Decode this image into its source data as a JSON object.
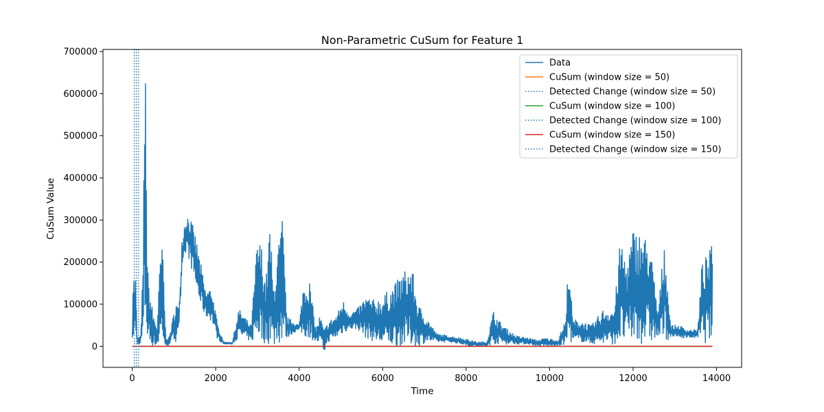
{
  "chart_data": {
    "type": "line",
    "title": "Non-Parametric CuSum for Feature 1",
    "xlabel": "Time",
    "ylabel": "CuSum Value",
    "xlim": [
      -700,
      14600
    ],
    "ylim": [
      -50000,
      705000
    ],
    "xticks": [
      0,
      2000,
      4000,
      6000,
      8000,
      10000,
      12000,
      14000
    ],
    "yticks": [
      0,
      100000,
      200000,
      300000,
      400000,
      500000,
      600000,
      700000
    ],
    "grid": false,
    "legend_position": "top-right",
    "colors": {
      "data": "#1f77b4",
      "cusum_50": "#ff7f0e",
      "cusum_100": "#2ca02c",
      "cusum_150": "#d62728",
      "detected": "#1f77b4"
    },
    "legend": [
      {
        "label": "Data",
        "style": "solid",
        "color": "#1f77b4"
      },
      {
        "label": "CuSum (window size = 50)",
        "style": "solid",
        "color": "#ff7f0e"
      },
      {
        "label": "Detected Change (window size = 50)",
        "style": "dotted",
        "color": "#1f77b4"
      },
      {
        "label": "CuSum (window size = 100)",
        "style": "solid",
        "color": "#2ca02c"
      },
      {
        "label": "Detected Change (window size = 100)",
        "style": "dotted",
        "color": "#1f77b4"
      },
      {
        "label": "CuSum (window size = 150)",
        "style": "solid",
        "color": "#d62728"
      },
      {
        "label": "Detected Change (window size = 150)",
        "style": "dotted",
        "color": "#1f77b4"
      }
    ],
    "detected_changes": [
      50,
      100,
      150
    ],
    "cusum_series": [
      {
        "name": "CuSum (window size = 50)",
        "x": [
          0,
          13900
        ],
        "y": [
          0,
          0
        ],
        "color": "#ff7f0e"
      },
      {
        "name": "CuSum (window size = 100)",
        "x": [
          0,
          13900
        ],
        "y": [
          0,
          0
        ],
        "color": "#2ca02c"
      },
      {
        "name": "CuSum (window size = 150)",
        "x": [
          0,
          13900
        ],
        "y": [
          0,
          0
        ],
        "color": "#d62728"
      }
    ],
    "data_envelope": [
      {
        "x": 0,
        "lo": 15000,
        "hi": 25000
      },
      {
        "x": 20,
        "lo": 15000,
        "hi": 170000
      },
      {
        "x": 80,
        "lo": 15000,
        "hi": 170000
      },
      {
        "x": 120,
        "lo": 5000,
        "hi": 20000
      },
      {
        "x": 200,
        "lo": 5000,
        "hi": 25000
      },
      {
        "x": 260,
        "lo": 5000,
        "hi": 200000
      },
      {
        "x": 300,
        "lo": 10000,
        "hi": 660000
      },
      {
        "x": 330,
        "lo": 15000,
        "hi": 670000
      },
      {
        "x": 360,
        "lo": 10000,
        "hi": 200000
      },
      {
        "x": 400,
        "lo": 5000,
        "hi": 150000
      },
      {
        "x": 500,
        "lo": 0,
        "hi": 80000
      },
      {
        "x": 600,
        "lo": 0,
        "hi": 50000
      },
      {
        "x": 680,
        "lo": 5000,
        "hi": 240000
      },
      {
        "x": 740,
        "lo": 5000,
        "hi": 230000
      },
      {
        "x": 800,
        "lo": -10000,
        "hi": 30000
      },
      {
        "x": 880,
        "lo": 5000,
        "hi": 20000
      },
      {
        "x": 960,
        "lo": 10000,
        "hi": 60000
      },
      {
        "x": 1040,
        "lo": 10000,
        "hi": 110000
      },
      {
        "x": 1120,
        "lo": 50000,
        "hi": 90000
      },
      {
        "x": 1200,
        "lo": 150000,
        "hi": 285000
      },
      {
        "x": 1300,
        "lo": 230000,
        "hi": 315000
      },
      {
        "x": 1380,
        "lo": 200000,
        "hi": 310000
      },
      {
        "x": 1500,
        "lo": 150000,
        "hi": 270000
      },
      {
        "x": 1620,
        "lo": 100000,
        "hi": 210000
      },
      {
        "x": 1760,
        "lo": 70000,
        "hi": 130000
      },
      {
        "x": 1900,
        "lo": 60000,
        "hi": 140000
      },
      {
        "x": 2050,
        "lo": 15000,
        "hi": 50000
      },
      {
        "x": 2200,
        "lo": 5000,
        "hi": 10000
      },
      {
        "x": 2400,
        "lo": 5000,
        "hi": 10000
      },
      {
        "x": 2550,
        "lo": 20000,
        "hi": 90000
      },
      {
        "x": 2700,
        "lo": 20000,
        "hi": 70000
      },
      {
        "x": 2850,
        "lo": 10000,
        "hi": 50000
      },
      {
        "x": 3000,
        "lo": 20000,
        "hi": 260000
      },
      {
        "x": 3100,
        "lo": 10000,
        "hi": 240000
      },
      {
        "x": 3200,
        "lo": 5000,
        "hi": 150000
      },
      {
        "x": 3300,
        "lo": 5000,
        "hi": 300000
      },
      {
        "x": 3380,
        "lo": 0,
        "hi": 140000
      },
      {
        "x": 3460,
        "lo": 0,
        "hi": 210000
      },
      {
        "x": 3600,
        "lo": 10000,
        "hi": 310000
      },
      {
        "x": 3700,
        "lo": 20000,
        "hi": 70000
      },
      {
        "x": 3850,
        "lo": 30000,
        "hi": 60000
      },
      {
        "x": 4000,
        "lo": 40000,
        "hi": 50000
      },
      {
        "x": 4100,
        "lo": 20000,
        "hi": 150000
      },
      {
        "x": 4250,
        "lo": 20000,
        "hi": 155000
      },
      {
        "x": 4400,
        "lo": 10000,
        "hi": 40000
      },
      {
        "x": 4500,
        "lo": 5000,
        "hi": 75000
      },
      {
        "x": 4600,
        "lo": -15000,
        "hi": 40000
      },
      {
        "x": 4700,
        "lo": 10000,
        "hi": 60000
      },
      {
        "x": 4900,
        "lo": 20000,
        "hi": 75000
      },
      {
        "x": 5050,
        "lo": 30000,
        "hi": 110000
      },
      {
        "x": 5200,
        "lo": 40000,
        "hi": 80000
      },
      {
        "x": 5400,
        "lo": 40000,
        "hi": 90000
      },
      {
        "x": 5600,
        "lo": 20000,
        "hi": 120000
      },
      {
        "x": 5800,
        "lo": 10000,
        "hi": 110000
      },
      {
        "x": 6000,
        "lo": 0,
        "hi": 120000
      },
      {
        "x": 6300,
        "lo": 0,
        "hi": 150000
      },
      {
        "x": 6500,
        "lo": 0,
        "hi": 180000
      },
      {
        "x": 6700,
        "lo": 0,
        "hi": 190000
      },
      {
        "x": 6850,
        "lo": 0,
        "hi": 100000
      },
      {
        "x": 7050,
        "lo": 10000,
        "hi": 70000
      },
      {
        "x": 7300,
        "lo": 10000,
        "hi": 30000
      },
      {
        "x": 7600,
        "lo": 10000,
        "hi": 25000
      },
      {
        "x": 7900,
        "lo": 5000,
        "hi": 20000
      },
      {
        "x": 8100,
        "lo": 0,
        "hi": 15000
      },
      {
        "x": 8300,
        "lo": 0,
        "hi": 10000
      },
      {
        "x": 8500,
        "lo": 0,
        "hi": 12000
      },
      {
        "x": 8650,
        "lo": 5000,
        "hi": 85000
      },
      {
        "x": 8800,
        "lo": 5000,
        "hi": 60000
      },
      {
        "x": 9000,
        "lo": 5000,
        "hi": 40000
      },
      {
        "x": 9200,
        "lo": 5000,
        "hi": 25000
      },
      {
        "x": 9500,
        "lo": 5000,
        "hi": 20000
      },
      {
        "x": 9700,
        "lo": 0,
        "hi": 15000
      },
      {
        "x": 9900,
        "lo": 0,
        "hi": 20000
      },
      {
        "x": 10200,
        "lo": 0,
        "hi": 15000
      },
      {
        "x": 10400,
        "lo": 5000,
        "hi": 70000
      },
      {
        "x": 10450,
        "lo": 10000,
        "hi": 235000
      },
      {
        "x": 10550,
        "lo": 10000,
        "hi": 65000
      },
      {
        "x": 10800,
        "lo": 10000,
        "hi": 60000
      },
      {
        "x": 11000,
        "lo": 5000,
        "hi": 50000
      },
      {
        "x": 11300,
        "lo": 5000,
        "hi": 90000
      },
      {
        "x": 11550,
        "lo": 5000,
        "hi": 90000
      },
      {
        "x": 11700,
        "lo": 5000,
        "hi": 260000
      },
      {
        "x": 11850,
        "lo": 5000,
        "hi": 200000
      },
      {
        "x": 12000,
        "lo": 5000,
        "hi": 280000
      },
      {
        "x": 12200,
        "lo": 5000,
        "hi": 270000
      },
      {
        "x": 12400,
        "lo": 5000,
        "hi": 250000
      },
      {
        "x": 12600,
        "lo": 20000,
        "hi": 80000
      },
      {
        "x": 12750,
        "lo": 10000,
        "hi": 260000
      },
      {
        "x": 12900,
        "lo": 20000,
        "hi": 50000
      },
      {
        "x": 13100,
        "lo": 20000,
        "hi": 50000
      },
      {
        "x": 13300,
        "lo": 20000,
        "hi": 40000
      },
      {
        "x": 13550,
        "lo": 20000,
        "hi": 40000
      },
      {
        "x": 13650,
        "lo": 5000,
        "hi": 200000
      },
      {
        "x": 13800,
        "lo": 10000,
        "hi": 220000
      },
      {
        "x": 13900,
        "lo": 10000,
        "hi": 245000
      }
    ]
  }
}
